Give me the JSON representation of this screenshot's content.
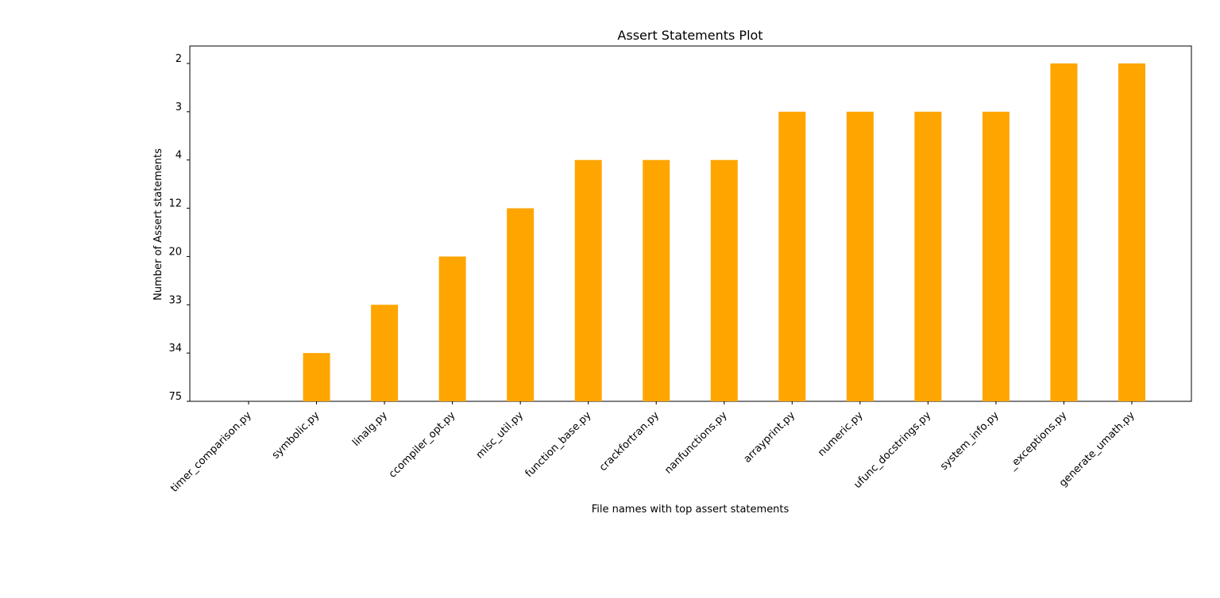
{
  "chart_data": {
    "type": "bar",
    "title": "Assert Statements Plot",
    "xlabel": "File names with top assert statements",
    "ylabel": "Number of Assert statements",
    "categories": [
      "timer_comparison.py",
      "symbolic.py",
      "linalg.py",
      "ccompiler_opt.py",
      "misc_util.py",
      "function_base.py",
      "crackfortran.py",
      "nanfunctions.py",
      "arrayprint.py",
      "numeric.py",
      "ufunc_docstrings.py",
      "system_info.py",
      "_exceptions.py",
      "generate_umath.py"
    ],
    "values": [
      "75",
      "34",
      "33",
      "20",
      "12",
      "4",
      "4",
      "4",
      "3",
      "3",
      "3",
      "3",
      "2",
      "2"
    ],
    "y_ticks": [
      "2",
      "3",
      "4",
      "12",
      "20",
      "33",
      "34",
      "75"
    ],
    "y_axis_note": "categorical string axis; inverted order",
    "bar_color": "#ffa500",
    "grid": false,
    "legend": "none"
  }
}
